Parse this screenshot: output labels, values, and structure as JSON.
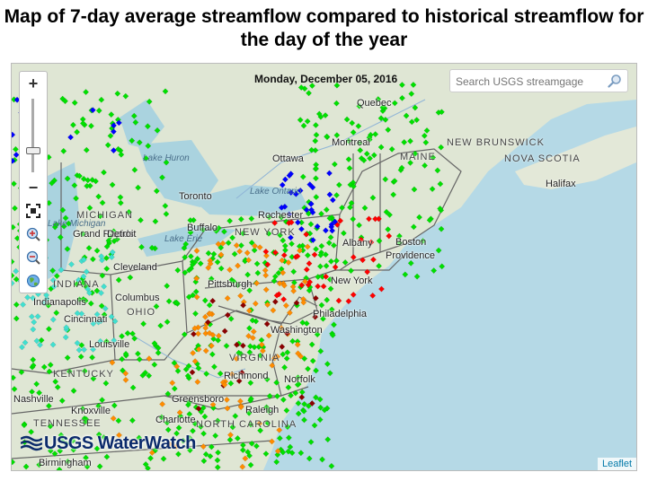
{
  "title": "Map of 7-day average streamflow compared to historical streamflow for the day of the year",
  "map": {
    "date": "Monday, December 05, 2016",
    "search_placeholder": "Search USGS streamgage",
    "attribution": "Leaflet",
    "logo": "USGS WaterWatch",
    "zoom": {
      "in_label": "+",
      "out_label": "−"
    },
    "icons": [
      "search-icon",
      "zoom-in-icon",
      "zoom-out-icon",
      "fullscreen-icon",
      "magnify-plus-icon",
      "magnify-minus-icon",
      "globe-icon"
    ],
    "places": [
      "Quebec",
      "Montreal",
      "Ottawa",
      "Toronto",
      "Buffalo",
      "Rochester",
      "Albany",
      "Boston",
      "Providence",
      "New York",
      "Philadelphia",
      "Washington",
      "Richmond",
      "Norfolk",
      "Pittsburgh",
      "Cleveland",
      "Columbus",
      "Cincinnati",
      "Louisville",
      "Nashville",
      "Knoxville",
      "Greensboro",
      "Raleigh",
      "Charlotte",
      "Birmingham",
      "Halifax",
      "Grand Rapids",
      "Detroit",
      "Indianapolis"
    ],
    "regions": [
      "MAINE",
      "NEW BRUNSWICK",
      "NOVA SCOTIA",
      "MICHIGAN",
      "NEW YORK",
      "INDIANA",
      "OHIO",
      "KENTUCKY",
      "VIRGINIA",
      "NORTH CAROLINA",
      "TENNESSEE"
    ],
    "lakes": [
      "Lake Huron",
      "Lake Ontario",
      "Lake Erie",
      "Lake Michigan"
    ],
    "legend_colors": {
      "much_below": "#8b0000",
      "below": "#ff0000",
      "below_normal": "#ff8c00",
      "normal": "#00e000",
      "above_normal": "#40e0d0",
      "above": "#0000ff",
      "high": "#000000"
    }
  }
}
